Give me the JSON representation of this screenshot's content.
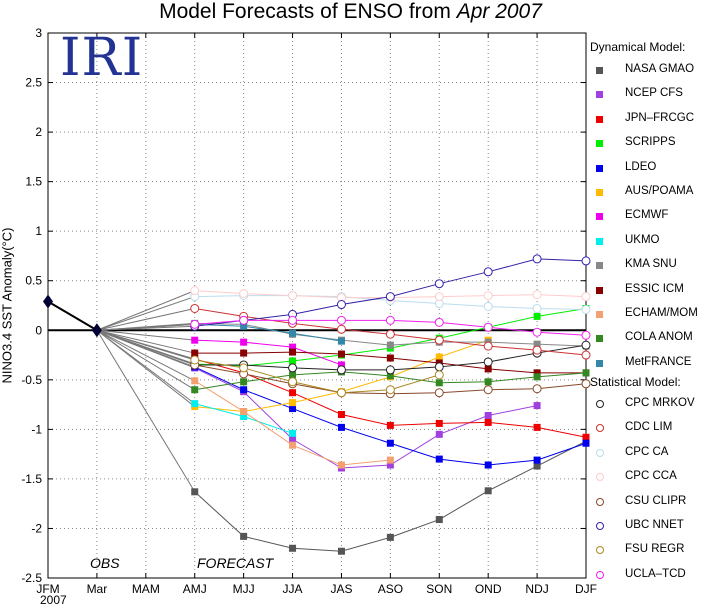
{
  "title": {
    "main": "Model Forecasts of ENSO from",
    "date": "Apr 2007"
  },
  "logo_text": "IRI",
  "obs_label": "OBS",
  "forecast_label": "FORECAST",
  "year_label": "2007",
  "legend": {
    "dynamical_heading": "Dynamical Model:",
    "statistical_heading": "Statistical Model:"
  },
  "chart_data": {
    "type": "line",
    "title": "Model Forecasts of ENSO from Apr 2007",
    "ylabel": "NINO3.4 SST Anomaly(°C)",
    "categories": [
      "JFM",
      "Mar",
      "MAM",
      "AMJ",
      "MJJ",
      "JJA",
      "JAS",
      "ASO",
      "SON",
      "OND",
      "NDJ",
      "DJF"
    ],
    "ylim": [
      -2.5,
      3
    ],
    "yticks": [
      3,
      2.5,
      2,
      1.5,
      1,
      0.5,
      0,
      -0.5,
      -1,
      -1.5,
      -2,
      -2.5
    ],
    "grid": true,
    "observed": {
      "categories": [
        "JFM",
        "Mar"
      ],
      "values": [
        0.29,
        0.0
      ]
    },
    "series": [
      {
        "name": "NASA GMAO",
        "group": "dynamical",
        "marker": "square",
        "color": "#555555",
        "values": [
          null,
          null,
          null,
          -1.63,
          -2.08,
          -2.2,
          -2.23,
          -2.09,
          -1.91,
          -1.62,
          -1.37,
          -1.12
        ]
      },
      {
        "name": "NCEP CFS",
        "group": "dynamical",
        "marker": "square",
        "color": "#a040e0",
        "values": [
          null,
          null,
          null,
          -0.38,
          -0.62,
          -1.1,
          -1.39,
          -1.36,
          -1.05,
          -0.86,
          -0.76,
          null
        ]
      },
      {
        "name": "JPN–FRCGC",
        "group": "dynamical",
        "marker": "square",
        "color": "#ee0000",
        "values": [
          null,
          null,
          null,
          -0.29,
          -0.43,
          -0.63,
          -0.85,
          -0.96,
          -0.94,
          -0.93,
          -0.98,
          -1.08
        ]
      },
      {
        "name": "SCRIPPS",
        "group": "dynamical",
        "marker": "square",
        "color": "#00ee00",
        "values": [
          null,
          null,
          null,
          -0.34,
          -0.36,
          -0.31,
          -0.25,
          -0.18,
          -0.08,
          0.03,
          0.14,
          0.22
        ]
      },
      {
        "name": "LDEO",
        "group": "dynamical",
        "marker": "square",
        "color": "#0000ee",
        "values": [
          null,
          null,
          null,
          -0.37,
          -0.6,
          -0.79,
          -0.98,
          -1.14,
          -1.3,
          -1.36,
          -1.31,
          -1.14
        ]
      },
      {
        "name": "AUS/POAMA",
        "group": "dynamical",
        "marker": "square",
        "color": "#ffbb00",
        "values": [
          null,
          null,
          null,
          -0.77,
          -0.82,
          -0.73,
          -0.62,
          -0.47,
          -0.27,
          -0.1,
          null,
          null
        ]
      },
      {
        "name": "ECMWF",
        "group": "dynamical",
        "marker": "square",
        "color": "#ee00ee",
        "values": [
          null,
          null,
          null,
          -0.1,
          -0.12,
          -0.17,
          -0.35,
          null,
          null,
          null,
          null,
          null
        ]
      },
      {
        "name": "UKMO",
        "group": "dynamical",
        "marker": "square",
        "color": "#00eeee",
        "values": [
          null,
          null,
          null,
          -0.74,
          -0.87,
          -1.04,
          null,
          null,
          null,
          null,
          null,
          null
        ]
      },
      {
        "name": "KMA SNU",
        "group": "dynamical",
        "marker": "square",
        "color": "#888888",
        "values": [
          null,
          null,
          null,
          0.07,
          0.06,
          -0.04,
          -0.1,
          -0.15,
          -0.12,
          -0.12,
          -0.14,
          -0.16
        ]
      },
      {
        "name": "ESSIC ICM",
        "group": "dynamical",
        "marker": "square",
        "color": "#880000",
        "values": [
          null,
          null,
          null,
          -0.23,
          -0.23,
          -0.22,
          -0.24,
          -0.28,
          -0.33,
          -0.39,
          -0.43,
          -0.43
        ]
      },
      {
        "name": "ECHAM/MOM",
        "group": "dynamical",
        "marker": "square",
        "color": "#f4a070",
        "values": [
          null,
          null,
          null,
          -0.51,
          -0.82,
          -1.16,
          -1.36,
          -1.31,
          null,
          null,
          null,
          null
        ]
      },
      {
        "name": "COLA ANOM",
        "group": "dynamical",
        "marker": "square",
        "color": "#338822",
        "values": [
          null,
          null,
          null,
          -0.6,
          -0.52,
          -0.45,
          -0.42,
          -0.46,
          -0.53,
          -0.52,
          -0.47,
          -0.43
        ]
      },
      {
        "name": "MetFRANCE",
        "group": "dynamical",
        "marker": "square",
        "color": "#3388aa",
        "values": [
          null,
          null,
          null,
          0.06,
          0.04,
          -0.03,
          -0.11,
          null,
          null,
          null,
          null,
          null
        ]
      },
      {
        "name": "CPC MRKOV",
        "group": "statistical",
        "marker": "circle",
        "color": "#222222",
        "values": [
          null,
          null,
          null,
          -0.35,
          -0.35,
          -0.38,
          -0.4,
          -0.4,
          -0.37,
          -0.32,
          -0.23,
          -0.15
        ]
      },
      {
        "name": "CDC LIM",
        "group": "statistical",
        "marker": "circle",
        "color": "#cc3333",
        "values": [
          null,
          null,
          null,
          0.22,
          0.14,
          0.07,
          0.01,
          -0.04,
          -0.1,
          -0.16,
          -0.2,
          -0.25
        ]
      },
      {
        "name": "CPC CA",
        "group": "statistical",
        "marker": "circle",
        "color": "#bbddee",
        "values": [
          null,
          null,
          null,
          0.34,
          0.35,
          0.35,
          0.34,
          0.3,
          0.27,
          0.24,
          0.22,
          0.21
        ]
      },
      {
        "name": "CPC CCA",
        "group": "statistical",
        "marker": "circle",
        "color": "#ffcccc",
        "values": [
          null,
          null,
          null,
          0.4,
          0.37,
          0.35,
          0.33,
          0.33,
          0.34,
          0.35,
          0.36,
          0.34
        ]
      },
      {
        "name": "CSU CLIPR",
        "group": "statistical",
        "marker": "circle",
        "color": "#8b4a2a",
        "values": [
          null,
          null,
          null,
          -0.35,
          -0.44,
          -0.54,
          -0.63,
          -0.64,
          -0.63,
          -0.6,
          -0.59,
          -0.54
        ]
      },
      {
        "name": "UBC NNET",
        "group": "statistical",
        "marker": "circle",
        "color": "#3322aa",
        "values": [
          null,
          null,
          null,
          0.04,
          0.1,
          0.16,
          0.26,
          0.34,
          0.47,
          0.59,
          0.72,
          0.7
        ]
      },
      {
        "name": "FSU REGR",
        "group": "statistical",
        "marker": "circle",
        "color": "#aa8822",
        "values": [
          null,
          null,
          null,
          -0.3,
          -0.38,
          -0.52,
          -0.63,
          -0.6,
          -0.45,
          null,
          null,
          null
        ]
      },
      {
        "name": "UCLA–TCD",
        "group": "statistical",
        "marker": "circle",
        "color": "#ee22ee",
        "values": [
          null,
          null,
          null,
          0.06,
          0.1,
          0.1,
          0.1,
          0.1,
          0.08,
          0.03,
          -0.02,
          -0.05
        ]
      }
    ]
  }
}
